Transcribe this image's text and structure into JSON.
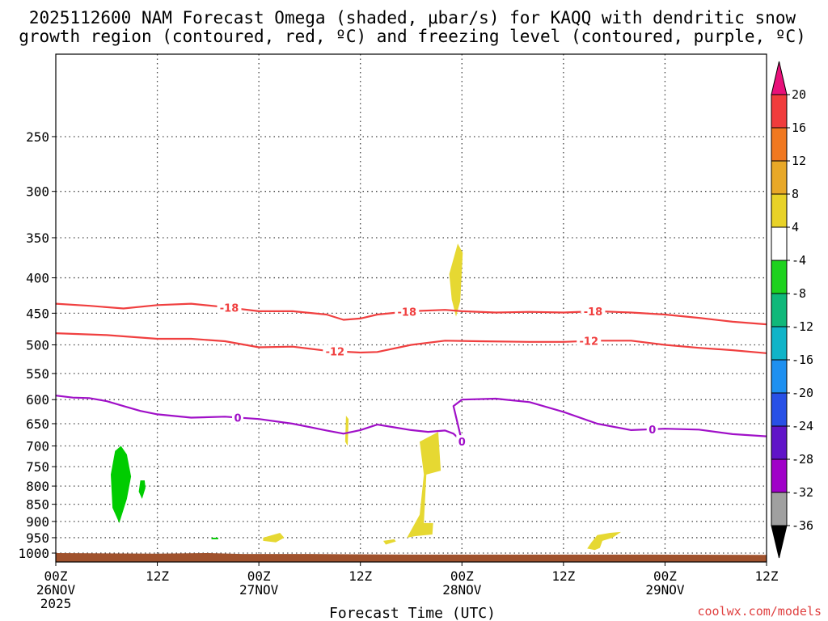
{
  "chart_data": {
    "type": "heatmap",
    "title_line1": "2025112600 NAM Forecast Omega (shaded, μbar/s) for KAQQ with dendritic snow",
    "title_line2": "growth region (contoured, red, ºC) and freezing level (contoured, purple, ºC)",
    "xlabel": "Forecast Time (UTC)",
    "credit": "coolwx.com/models",
    "x_range_hours": [
      0,
      84
    ],
    "y_range_hpa": [
      190,
      1030
    ],
    "y_ticks": [
      250,
      300,
      350,
      400,
      450,
      500,
      550,
      600,
      650,
      700,
      750,
      800,
      850,
      900,
      950,
      1000
    ],
    "x_ticks": [
      {
        "h": 0,
        "line1": "00Z",
        "line2": "26NOV",
        "line3": "2025"
      },
      {
        "h": 12,
        "line1": "12Z",
        "line2": "",
        "line3": ""
      },
      {
        "h": 24,
        "line1": "00Z",
        "line2": "27NOV",
        "line3": ""
      },
      {
        "h": 36,
        "line1": "12Z",
        "line2": "",
        "line3": ""
      },
      {
        "h": 48,
        "line1": "00Z",
        "line2": "28NOV",
        "line3": ""
      },
      {
        "h": 60,
        "line1": "12Z",
        "line2": "",
        "line3": ""
      },
      {
        "h": 72,
        "line1": "00Z",
        "line2": "29NOV",
        "line3": ""
      },
      {
        "h": 84,
        "line1": "12Z",
        "line2": "",
        "line3": ""
      }
    ],
    "colorbar": {
      "labels": [
        "20",
        "16",
        "12",
        "8",
        "4",
        "-4",
        "-8",
        "-12",
        "-16",
        "-20",
        "-24",
        "-28",
        "-32",
        "-36"
      ],
      "top_triangle_color": "#e8107a",
      "bottom_triangle_color": "#000000",
      "colors": [
        "#f03c3c",
        "#f07820",
        "#e8a828",
        "#e8d228",
        "#ffffff",
        "#1ed21e",
        "#10b87a",
        "#10b4c8",
        "#1e90f0",
        "#2850e6",
        "#6014c8",
        "#a000c8",
        "#a0a0a0"
      ]
    },
    "contours": [
      {
        "name": "-18",
        "color": "#f04040",
        "label_hours": [
          20.5,
          41.5,
          63.5
        ],
        "points": [
          [
            0,
            436
          ],
          [
            4,
            439
          ],
          [
            8,
            443
          ],
          [
            12,
            438
          ],
          [
            16,
            436
          ],
          [
            20,
            441
          ],
          [
            24,
            447
          ],
          [
            28,
            447
          ],
          [
            32,
            452
          ],
          [
            34,
            460
          ],
          [
            36,
            458
          ],
          [
            38,
            452
          ],
          [
            42,
            447
          ],
          [
            46,
            445
          ],
          [
            48,
            447
          ],
          [
            52,
            449
          ],
          [
            56,
            448
          ],
          [
            60,
            449
          ],
          [
            64,
            447
          ],
          [
            68,
            449
          ],
          [
            72,
            452
          ],
          [
            76,
            457
          ],
          [
            80,
            463
          ],
          [
            84,
            467
          ]
        ]
      },
      {
        "name": "-12",
        "color": "#f04040",
        "label_hours": [
          33,
          63
        ],
        "points": [
          [
            0,
            481
          ],
          [
            6,
            484
          ],
          [
            12,
            490
          ],
          [
            16,
            490
          ],
          [
            20,
            494
          ],
          [
            24,
            504
          ],
          [
            28,
            503
          ],
          [
            32,
            510
          ],
          [
            36,
            513
          ],
          [
            38,
            512
          ],
          [
            42,
            500
          ],
          [
            46,
            493
          ],
          [
            50,
            494
          ],
          [
            56,
            495
          ],
          [
            60,
            495
          ],
          [
            64,
            493
          ],
          [
            68,
            493
          ],
          [
            72,
            500
          ],
          [
            76,
            505
          ],
          [
            80,
            509
          ],
          [
            84,
            514
          ]
        ]
      },
      {
        "name": "0",
        "color": "#a010c8",
        "label_hours": [
          21.5,
          48,
          70.5
        ],
        "points": [
          [
            0,
            592
          ],
          [
            2,
            596
          ],
          [
            4,
            597
          ],
          [
            6,
            603
          ],
          [
            8,
            613
          ],
          [
            10,
            623
          ],
          [
            12,
            630
          ],
          [
            16,
            637
          ],
          [
            20,
            635
          ],
          [
            24,
            640
          ],
          [
            28,
            650
          ],
          [
            32,
            665
          ],
          [
            34,
            672
          ],
          [
            36,
            664
          ],
          [
            38,
            652
          ],
          [
            40,
            658
          ],
          [
            42,
            664
          ],
          [
            44,
            668
          ],
          [
            46,
            665
          ],
          [
            47,
            672
          ],
          [
            48,
            690
          ],
          [
            47,
            613
          ],
          [
            48,
            600
          ],
          [
            52,
            598
          ],
          [
            56,
            605
          ],
          [
            60,
            625
          ],
          [
            64,
            650
          ],
          [
            68,
            664
          ],
          [
            72,
            661
          ],
          [
            76,
            663
          ],
          [
            80,
            673
          ],
          [
            84,
            678
          ]
        ]
      }
    ],
    "shaded_regions": [
      {
        "name": "green",
        "color": "#00cc00",
        "points": [
          [
            6.5,
            770
          ],
          [
            7,
            712
          ],
          [
            7.7,
            700
          ],
          [
            8.4,
            720
          ],
          [
            8.9,
            775
          ],
          [
            8.4,
            835
          ],
          [
            7.5,
            905
          ],
          [
            6.7,
            860
          ]
        ]
      },
      {
        "name": "green-small",
        "color": "#00cc00",
        "points": [
          [
            10,
            785
          ],
          [
            10.5,
            785
          ],
          [
            10.6,
            805
          ],
          [
            10.2,
            835
          ],
          [
            9.8,
            815
          ]
        ]
      },
      {
        "name": "green-sfc",
        "color": "#00cc00",
        "points": [
          [
            18.4,
            950
          ],
          [
            19.2,
            950
          ],
          [
            19.2,
            955
          ],
          [
            18.4,
            955
          ]
        ]
      },
      {
        "name": "yellow-upper",
        "color": "#e6d832",
        "points": [
          [
            46.5,
            395
          ],
          [
            47.5,
            357
          ],
          [
            48.1,
            368
          ],
          [
            47.8,
            432
          ],
          [
            47.3,
            455
          ],
          [
            46.8,
            430
          ]
        ]
      },
      {
        "name": "yellow-mid-thin",
        "color": "#e6d832",
        "points": [
          [
            34.3,
            633
          ],
          [
            34.6,
            640
          ],
          [
            34.5,
            700
          ],
          [
            34.2,
            690
          ]
        ]
      },
      {
        "name": "yellow-lower",
        "color": "#e6d832",
        "points": [
          [
            43,
            690
          ],
          [
            45.2,
            668
          ],
          [
            45.5,
            760
          ],
          [
            43.8,
            770
          ],
          [
            43.5,
            905
          ],
          [
            44.6,
            905
          ],
          [
            44.5,
            940
          ],
          [
            42.5,
            945
          ],
          [
            41.5,
            950
          ],
          [
            43,
            880
          ],
          [
            43.5,
            770
          ]
        ]
      },
      {
        "name": "yellow-small-left",
        "color": "#e6d832",
        "points": [
          [
            24.5,
            950
          ],
          [
            26.5,
            935
          ],
          [
            27,
            950
          ],
          [
            26,
            965
          ],
          [
            24.5,
            960
          ]
        ]
      },
      {
        "name": "yellow-small-mid",
        "color": "#e6d832",
        "points": [
          [
            38.7,
            960
          ],
          [
            40,
            955
          ],
          [
            40.2,
            962
          ],
          [
            39,
            972
          ]
        ]
      },
      {
        "name": "yellow-right",
        "color": "#e6d832",
        "points": [
          [
            63.3,
            965
          ],
          [
            64,
            942
          ],
          [
            65.5,
            935
          ],
          [
            66.8,
            932
          ],
          [
            65.8,
            950
          ],
          [
            64.6,
            960
          ],
          [
            64.3,
            983
          ],
          [
            63.7,
            990
          ],
          [
            62.8,
            985
          ]
        ]
      }
    ],
    "terrain": {
      "color": "#a0522d",
      "points": [
        [
          0,
          1000
        ],
        [
          12,
          1002
        ],
        [
          18,
          1000
        ],
        [
          22,
          1003
        ],
        [
          30,
          1003
        ],
        [
          35,
          1004
        ],
        [
          43,
          1005
        ],
        [
          60,
          1005
        ],
        [
          70,
          1005
        ],
        [
          84,
          1006
        ]
      ]
    }
  }
}
